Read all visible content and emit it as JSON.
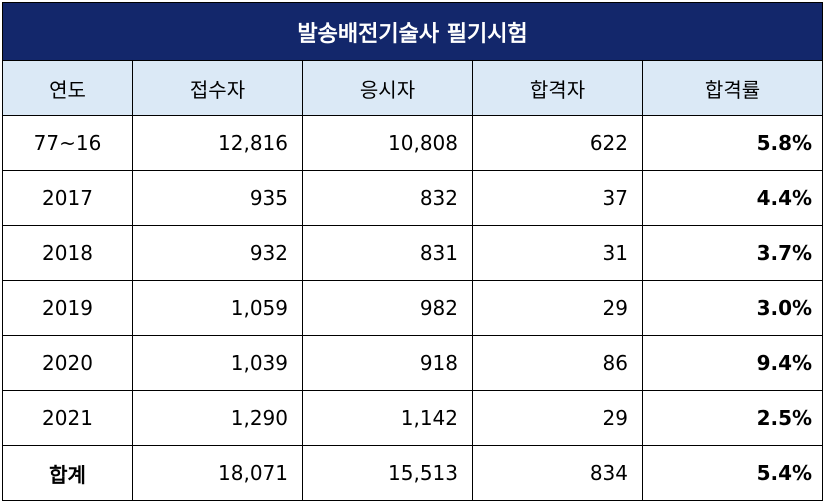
{
  "title": "발송배전기술사 필기시험",
  "columns": [
    "연도",
    "접수자",
    "응시자",
    "합격자",
    "합격률"
  ],
  "rows": [
    [
      "77~16",
      "12,816",
      "10,808",
      "622",
      "5.8%"
    ],
    [
      "2017",
      "935",
      "832",
      "37",
      "4.4%"
    ],
    [
      "2018",
      "932",
      "831",
      "31",
      "3.7%"
    ],
    [
      "2019",
      "1,059",
      "982",
      "29",
      "3.0%"
    ],
    [
      "2020",
      "1,039",
      "918",
      "86",
      "9.4%"
    ],
    [
      "2021",
      "1,290",
      "1,142",
      "29",
      "2.5%"
    ]
  ],
  "total": [
    "합계",
    "18,071",
    "15,513",
    "834",
    "5.4%"
  ]
}
